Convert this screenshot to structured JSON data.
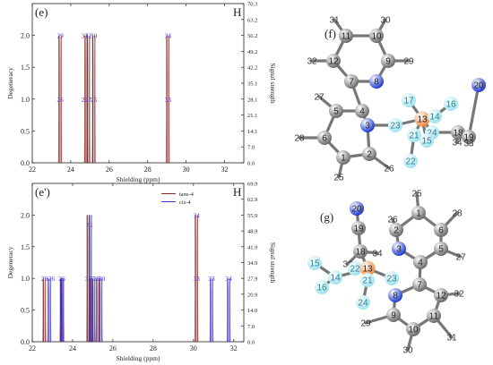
{
  "chart_data": [
    {
      "type": "line",
      "panel_label": "(e)",
      "corner_label": "H",
      "xlabel": "Shielding (ppm)",
      "ylabel": "Degeneracy",
      "y2label": "Signal strength",
      "xlim": [
        22,
        33
      ],
      "ylim": [
        0,
        2.5
      ],
      "xticks": [
        22,
        24,
        26,
        28,
        30,
        32
      ],
      "yticks": [
        0.0,
        0.5,
        1.0,
        1.5,
        2.0
      ],
      "y2ticks": [
        "0.0",
        "7.0",
        "14.1",
        "21.1",
        "28.1",
        "35.1",
        "42.2",
        "49.2",
        "56.2",
        "63.2",
        "70.3"
      ],
      "sticks": [
        {
          "x": 23.45,
          "deg": 2
        },
        {
          "x": 24.8,
          "deg": 2
        },
        {
          "x": 24.92,
          "deg": 2
        },
        {
          "x": 25.2,
          "deg": 2
        },
        {
          "x": 29.05,
          "deg": 2
        }
      ],
      "peak_labels": [
        {
          "text": "29",
          "x": 23.45,
          "y": 2.0
        },
        {
          "text": "31",
          "x": 24.72,
          "y": 2.0
        },
        {
          "text": "32",
          "x": 24.92,
          "y": 2.0
        },
        {
          "text": "30",
          "x": 25.2,
          "y": 2.0
        },
        {
          "text": "34",
          "x": 29.05,
          "y": 2.0
        },
        {
          "text": "26",
          "x": 23.45,
          "y": 1.0
        },
        {
          "text": "28",
          "x": 24.72,
          "y": 1.0
        },
        {
          "text": "27",
          "x": 24.92,
          "y": 1.0
        },
        {
          "text": "25",
          "x": 25.2,
          "y": 1.0
        },
        {
          "text": "33",
          "x": 29.05,
          "y": 1.0
        }
      ]
    },
    {
      "type": "line",
      "panel_label": "(e')",
      "corner_label": "H",
      "xlabel": "Shielding (ppm)",
      "ylabel": "Degeneracy",
      "y2label": "Signal strength",
      "xlim": [
        22,
        32.5
      ],
      "ylim": [
        0,
        2.5
      ],
      "xticks": [
        22,
        24,
        26,
        28,
        30,
        32
      ],
      "yticks": [
        0.0,
        0.5,
        1.0,
        1.5,
        2.0
      ],
      "y2ticks": [
        "0.0",
        "7.0",
        "14.0",
        "20.9",
        "27.9",
        "34.9",
        "41.9",
        "48.9",
        "55.9",
        "62.9",
        "69.9"
      ],
      "legend": [
        {
          "name": "tans-4",
          "color": "#8b2a2a"
        },
        {
          "name": "cis-4",
          "color": "#3b2ecc"
        }
      ],
      "series": [
        {
          "name": "tans-4",
          "color": "#8b2a2a",
          "sticks": [
            {
              "x": 22.6,
              "deg": 1
            },
            {
              "x": 23.45,
              "deg": 1
            },
            {
              "x": 24.78,
              "deg": 2
            },
            {
              "x": 24.95,
              "deg": 1
            },
            {
              "x": 25.25,
              "deg": 1
            },
            {
              "x": 30.15,
              "deg": 2
            }
          ]
        },
        {
          "name": "cis-4",
          "color": "#3b2ecc",
          "sticks": [
            {
              "x": 22.85,
              "deg": 1
            },
            {
              "x": 23.5,
              "deg": 1
            },
            {
              "x": 24.88,
              "deg": 2
            },
            {
              "x": 25.05,
              "deg": 1
            },
            {
              "x": 25.4,
              "deg": 1
            },
            {
              "x": 30.9,
              "deg": 1
            },
            {
              "x": 31.75,
              "deg": 1
            }
          ]
        }
      ],
      "peak_labels": [
        {
          "text": "29",
          "x": 22.6,
          "y": 1.0
        },
        {
          "text": "26",
          "x": 22.95,
          "y": 1.0
        },
        {
          "text": "26",
          "x": 23.47,
          "y": 1.0
        },
        {
          "text": "32",
          "x": 24.78,
          "y": 1.0
        },
        {
          "text": "27",
          "x": 24.95,
          "y": 1.0
        },
        {
          "text": "28",
          "x": 25.2,
          "y": 1.0
        },
        {
          "text": "30",
          "x": 25.45,
          "y": 1.0
        },
        {
          "text": "31",
          "x": 24.85,
          "y": 1.85
        },
        {
          "text": "34",
          "x": 30.15,
          "y": 2.0
        },
        {
          "text": "33",
          "x": 30.15,
          "y": 1.0
        },
        {
          "text": "33",
          "x": 30.9,
          "y": 1.0
        },
        {
          "text": "34",
          "x": 31.75,
          "y": 1.0
        }
      ]
    }
  ],
  "molecules": [
    {
      "panel_label": "(f)",
      "atoms": [
        {
          "id": "31",
          "el": "H"
        },
        {
          "id": "30",
          "el": "H"
        },
        {
          "id": "11",
          "el": "C"
        },
        {
          "id": "10",
          "el": "C"
        },
        {
          "id": "32",
          "el": "H"
        },
        {
          "id": "12",
          "el": "C"
        },
        {
          "id": "9",
          "el": "C"
        },
        {
          "id": "29",
          "el": "H"
        },
        {
          "id": "7",
          "el": "C"
        },
        {
          "id": "8",
          "el": "N"
        },
        {
          "id": "27",
          "el": "H"
        },
        {
          "id": "5",
          "el": "C"
        },
        {
          "id": "4",
          "el": "C"
        },
        {
          "id": "17",
          "el": "F"
        },
        {
          "id": "20",
          "el": "N"
        },
        {
          "id": "16",
          "el": "F"
        },
        {
          "id": "13",
          "el": "P"
        },
        {
          "id": "14",
          "el": "F"
        },
        {
          "id": "28",
          "el": "H"
        },
        {
          "id": "6",
          "el": "C"
        },
        {
          "id": "3",
          "el": "N"
        },
        {
          "id": "23",
          "el": "F"
        },
        {
          "id": "21",
          "el": "F"
        },
        {
          "id": "24",
          "el": "F"
        },
        {
          "id": "18",
          "el": "C"
        },
        {
          "id": "19",
          "el": "C"
        },
        {
          "id": "15",
          "el": "F"
        },
        {
          "id": "34",
          "el": "H"
        },
        {
          "id": "33",
          "el": "H"
        },
        {
          "id": "22",
          "el": "F"
        },
        {
          "id": "1",
          "el": "C"
        },
        {
          "id": "2",
          "el": "C"
        },
        {
          "id": "26",
          "el": "H"
        },
        {
          "id": "25",
          "el": "H"
        }
      ]
    },
    {
      "panel_label": "(g)",
      "atoms": [
        {
          "id": "25",
          "el": "H"
        },
        {
          "id": "20",
          "el": "N"
        },
        {
          "id": "26",
          "el": "H"
        },
        {
          "id": "1",
          "el": "C"
        },
        {
          "id": "28",
          "el": "H"
        },
        {
          "id": "2",
          "el": "C"
        },
        {
          "id": "6",
          "el": "C"
        },
        {
          "id": "19",
          "el": "C"
        },
        {
          "id": "3",
          "el": "N"
        },
        {
          "id": "5",
          "el": "C"
        },
        {
          "id": "27",
          "el": "H"
        },
        {
          "id": "4",
          "el": "C"
        },
        {
          "id": "18",
          "el": "C"
        },
        {
          "id": "15",
          "el": "F"
        },
        {
          "id": "33",
          "el": "H"
        },
        {
          "id": "22",
          "el": "F"
        },
        {
          "id": "34",
          "el": "H"
        },
        {
          "id": "13",
          "el": "P"
        },
        {
          "id": "16",
          "el": "F"
        },
        {
          "id": "14",
          "el": "F"
        },
        {
          "id": "21",
          "el": "F"
        },
        {
          "id": "23",
          "el": "F"
        },
        {
          "id": "7",
          "el": "C"
        },
        {
          "id": "24",
          "el": "F"
        },
        {
          "id": "12",
          "el": "C"
        },
        {
          "id": "32",
          "el": "H"
        },
        {
          "id": "8",
          "el": "N"
        },
        {
          "id": "9",
          "el": "C"
        },
        {
          "id": "29",
          "el": "H"
        },
        {
          "id": "11",
          "el": "C"
        },
        {
          "id": "10",
          "el": "C"
        },
        {
          "id": "31",
          "el": "H"
        },
        {
          "id": "30",
          "el": "H"
        }
      ]
    }
  ],
  "colors": {
    "C": "#6b6b6b",
    "H": "#b5b5b5",
    "N": "#1f3bd1",
    "F": "#9fe3ee",
    "P": "#f08a40"
  }
}
